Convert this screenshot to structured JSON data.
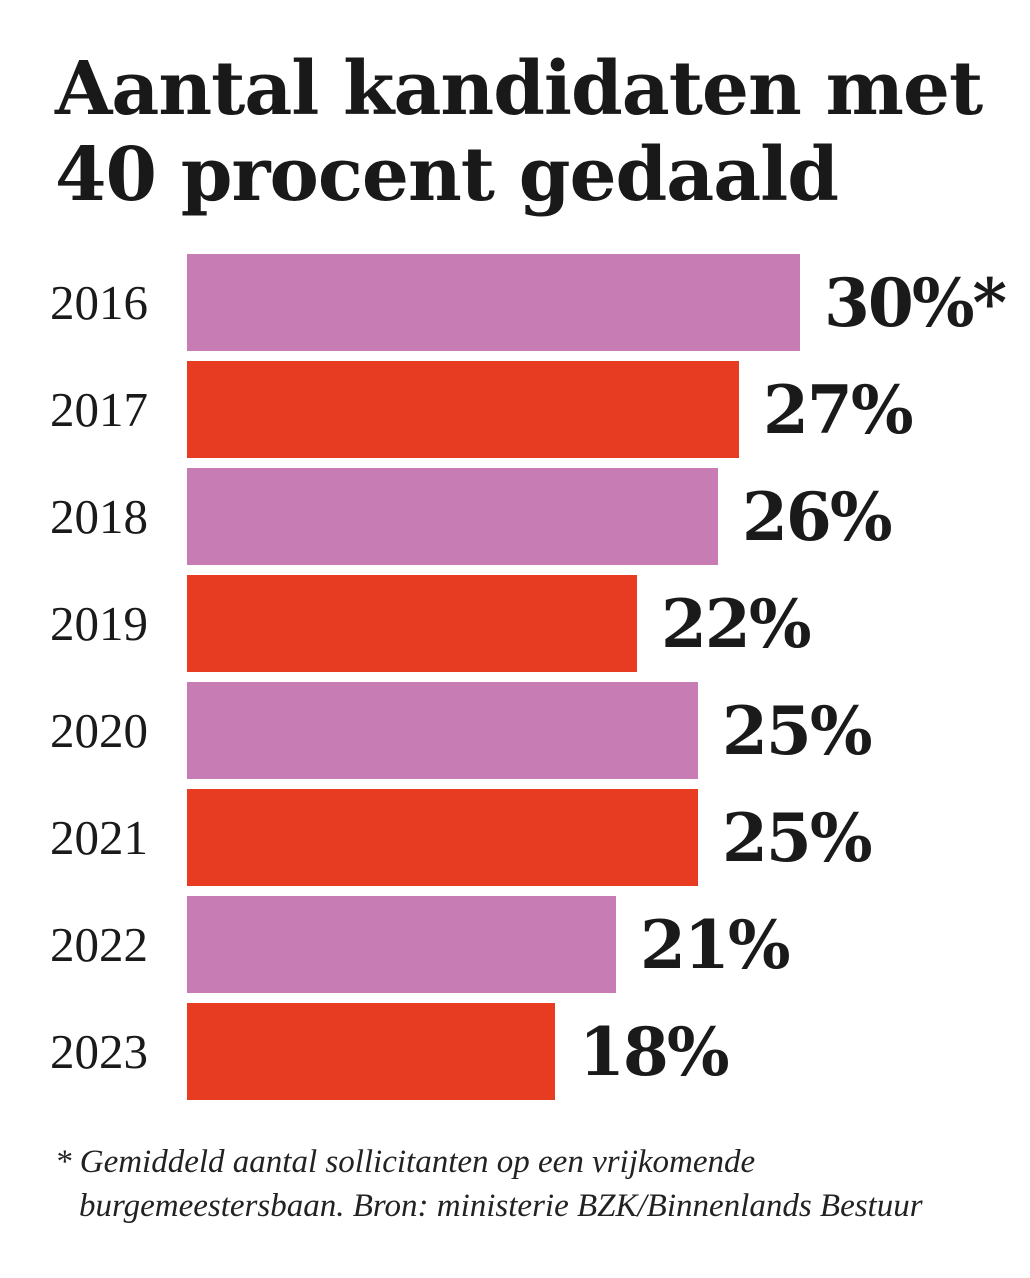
{
  "title": {
    "line1": "Aantal kandidaten met",
    "line2": "40 procent gedaald"
  },
  "chart_data": {
    "type": "bar",
    "orientation": "horizontal",
    "title": "Aantal kandidaten met 40 procent gedaald",
    "categories": [
      "2016",
      "2017",
      "2018",
      "2019",
      "2020",
      "2021",
      "2022",
      "2023"
    ],
    "values": [
      30,
      27,
      26,
      22,
      25,
      25,
      21,
      18
    ],
    "value_labels": [
      "30%*",
      "27%",
      "26%",
      "22%",
      "25%",
      "25%",
      "21%",
      "18%"
    ],
    "bar_colors": [
      "#c77db3",
      "#e73b22",
      "#c77db3",
      "#e73b22",
      "#c77db3",
      "#e73b22",
      "#c77db3",
      "#e73b22"
    ],
    "xlim": [
      0,
      30
    ],
    "grid": false,
    "legend": false,
    "xlabel": "",
    "ylabel": ""
  },
  "footnote": {
    "line1": "* Gemiddeld aantal sollicitanten op een vrijkomende",
    "line2": "burgemeestersbaan. Bron: ministerie BZK/Binnenlands Bestuur"
  },
  "colors": {
    "pink": "#c77db3",
    "red": "#e73b22",
    "text": "#1a1a1a",
    "background": "#ffffff"
  }
}
